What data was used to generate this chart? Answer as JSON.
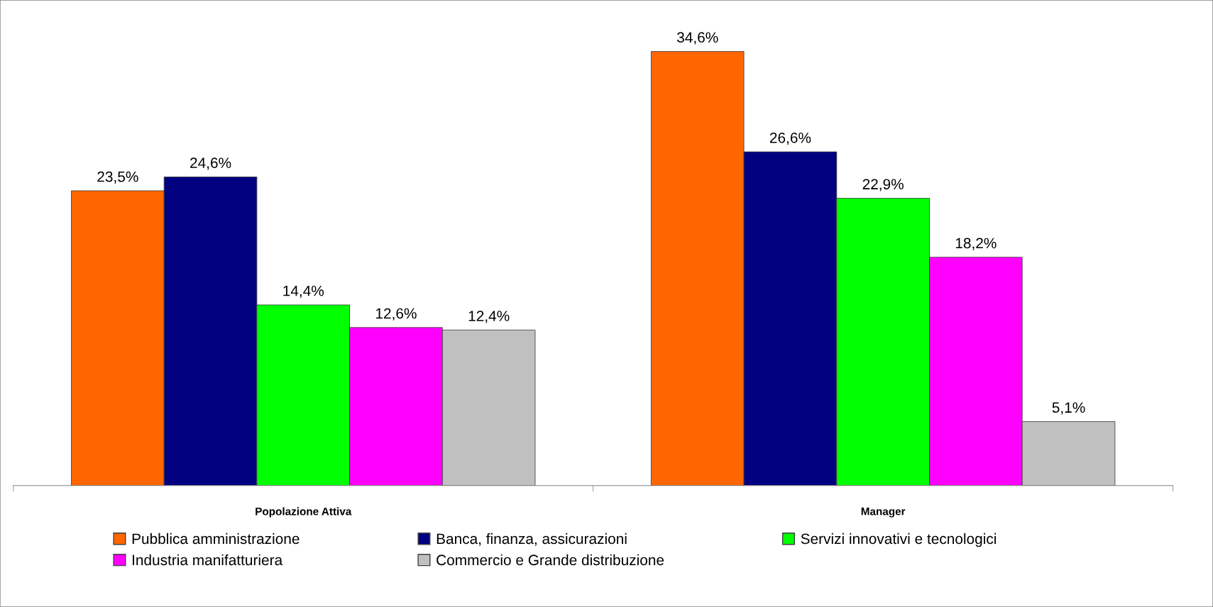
{
  "chart_data": {
    "type": "bar",
    "categories": [
      "Popolazione Attiva",
      "Manager"
    ],
    "series": [
      {
        "name": "Pubblica amministrazione",
        "color": "#ff6600",
        "values": [
          23.5,
          34.6
        ],
        "value_labels": [
          "23,5%",
          "34,6%"
        ]
      },
      {
        "name": "Banca, finanza, assicurazioni",
        "color": "#000080",
        "values": [
          24.6,
          26.6
        ],
        "value_labels": [
          "24,6%",
          "26,6%"
        ]
      },
      {
        "name": "Servizi innovativi e tecnologici",
        "color": "#00ff00",
        "values": [
          14.4,
          22.9
        ],
        "value_labels": [
          "14,4%",
          "22,9%"
        ]
      },
      {
        "name": "Industria manifatturiera",
        "color": "#ff00ff",
        "values": [
          12.6,
          18.2
        ],
        "value_labels": [
          "12,6%",
          "18,2%"
        ]
      },
      {
        "name": "Commercio e Grande distribuzione",
        "color": "#c0c0c0",
        "values": [
          12.4,
          5.1
        ],
        "value_labels": [
          "12,4%",
          "5,1%"
        ]
      }
    ],
    "tick_labels": "x",
    "grid": false,
    "legend": "bottom"
  }
}
